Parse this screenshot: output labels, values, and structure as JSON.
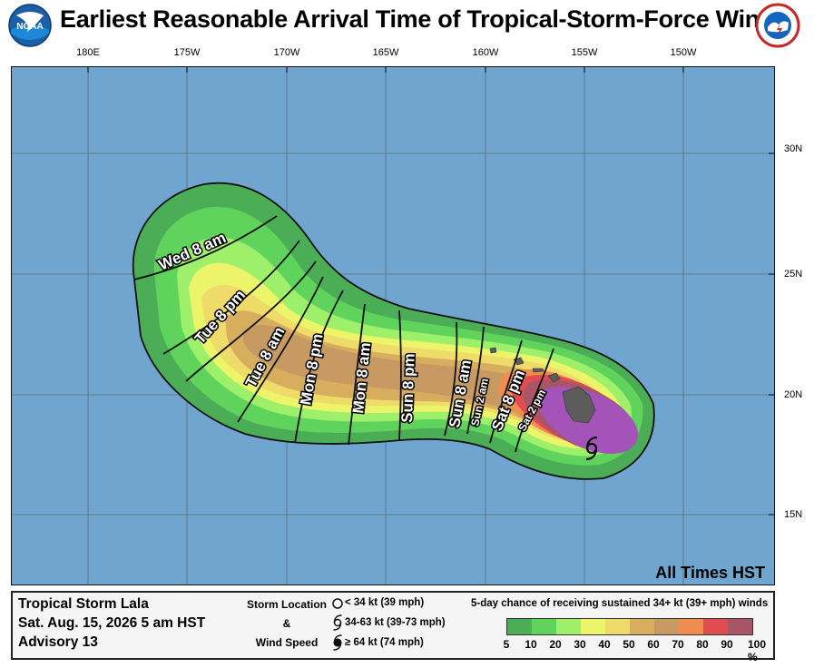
{
  "title": "Earliest Reasonable Arrival Time of Tropical-Storm-Force Winds",
  "logos": {
    "left": {
      "text": "NOAA",
      "icon": "noaa-logo-icon"
    },
    "right": {
      "text": "NATIONAL WEATHER SERVICE",
      "icon": "nws-logo-icon"
    }
  },
  "map": {
    "longitude_labels": [
      "180E",
      "175W",
      "170W",
      "165W",
      "160W",
      "155W",
      "150W"
    ],
    "latitude_labels": [
      "30N",
      "25N",
      "20N",
      "15N"
    ],
    "ocean_color": "#6fa5cf",
    "land_color": "#5c5c5c",
    "time_note": "All Times HST",
    "arrival_labels": [
      "Wed 8 am",
      "Tue 8 pm",
      "Tue 8 am",
      "Mon 8 pm",
      "Mon 8 am",
      "Sun 8 pm",
      "Sun 8 am",
      "Sun 2 am",
      "Sat 8 pm",
      "Sat 2 pm"
    ],
    "storm_symbol": "tropical-storm-symbol-icon"
  },
  "legend": {
    "storm_name": "Tropical Storm Lala",
    "date": "Sat. Aug. 15, 2026  5 am HST",
    "advisory": "Advisory 13",
    "storm_location_title": "Storm Location",
    "ampersand": "&",
    "wind_speed_title": "Wind Speed",
    "symbols": [
      {
        "icon": "open-circle-icon",
        "label": "< 34 kt (39 mph)"
      },
      {
        "icon": "tropical-storm-symbol-icon",
        "label": "34-63 kt (39-73 mph)"
      },
      {
        "icon": "hurricane-symbol-icon",
        "label": "≥ 64 kt (74 mph)"
      }
    ],
    "probability_title": "5-day chance of receiving sustained 34+ kt (39+ mph) winds",
    "scale_labels": [
      "5",
      "10",
      "20",
      "30",
      "40",
      "50",
      "60",
      "70",
      "80",
      "90",
      "100 %"
    ],
    "scale_colors": [
      "#4bad55",
      "#5fd35c",
      "#9ef06a",
      "#ecf46a",
      "#eedb69",
      "#d7ad5e",
      "#c69a62",
      "#ef8d51",
      "#e04c4f",
      "#a85566",
      "#a453b8"
    ]
  }
}
